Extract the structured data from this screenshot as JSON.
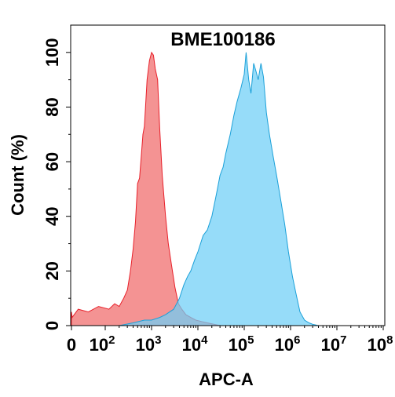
{
  "chart_data": {
    "type": "area",
    "title": "BME100186",
    "xlabel": "APC-A",
    "ylabel": "Count (%)",
    "x_scale": "biexponential",
    "ylim": [
      0,
      110
    ],
    "x_ticks": [
      {
        "value": 0,
        "base": "0",
        "exp": ""
      },
      {
        "value": 100,
        "base": "10",
        "exp": "2"
      },
      {
        "value": 1000,
        "base": "10",
        "exp": "3"
      },
      {
        "value": 10000,
        "base": "10",
        "exp": "4"
      },
      {
        "value": 100000,
        "base": "10",
        "exp": "5"
      },
      {
        "value": 1000000,
        "base": "10",
        "exp": "6"
      },
      {
        "value": 10000000,
        "base": "10",
        "exp": "7"
      },
      {
        "value": 100000000,
        "base": "10",
        "exp": "8"
      }
    ],
    "y_ticks": [
      0,
      20,
      40,
      60,
      80,
      100
    ],
    "grid": false,
    "series": [
      {
        "color": "#f06a6a",
        "stroke": "#e8202a",
        "points": [
          [
            0,
            0
          ],
          [
            0,
            5
          ],
          [
            2,
            3
          ],
          [
            20,
            6
          ],
          [
            50,
            5
          ],
          [
            80,
            7
          ],
          [
            120,
            6
          ],
          [
            160,
            8
          ],
          [
            200,
            7
          ],
          [
            250,
            10
          ],
          [
            300,
            13
          ],
          [
            350,
            20
          ],
          [
            400,
            28
          ],
          [
            450,
            38
          ],
          [
            500,
            52
          ],
          [
            550,
            54
          ],
          [
            600,
            62
          ],
          [
            650,
            70
          ],
          [
            700,
            73
          ],
          [
            800,
            90
          ],
          [
            900,
            97
          ],
          [
            1000,
            100
          ],
          [
            1100,
            99
          ],
          [
            1200,
            94
          ],
          [
            1350,
            90
          ],
          [
            1500,
            72
          ],
          [
            1700,
            55
          ],
          [
            2000,
            40
          ],
          [
            2300,
            30
          ],
          [
            2700,
            22
          ],
          [
            3200,
            14
          ],
          [
            3800,
            8
          ],
          [
            4500,
            6
          ],
          [
            5500,
            4
          ],
          [
            7000,
            3
          ],
          [
            9000,
            2
          ],
          [
            12000,
            1.5
          ],
          [
            16000,
            1
          ],
          [
            22000,
            0.5
          ],
          [
            30000,
            0
          ]
        ]
      },
      {
        "color": "#6ecff6",
        "stroke": "#1ba0d8",
        "points": [
          [
            200,
            0
          ],
          [
            400,
            1
          ],
          [
            700,
            2
          ],
          [
            1000,
            2
          ],
          [
            1500,
            3
          ],
          [
            2000,
            4
          ],
          [
            3000,
            6
          ],
          [
            4000,
            10
          ],
          [
            5000,
            15
          ],
          [
            6000,
            18
          ],
          [
            7000,
            20
          ],
          [
            8500,
            24
          ],
          [
            10000,
            27
          ],
          [
            13000,
            33
          ],
          [
            16000,
            35
          ],
          [
            20000,
            40
          ],
          [
            25000,
            48
          ],
          [
            30000,
            55
          ],
          [
            35000,
            58
          ],
          [
            40000,
            63
          ],
          [
            50000,
            70
          ],
          [
            60000,
            77
          ],
          [
            70000,
            82
          ],
          [
            85000,
            87
          ],
          [
            100000,
            92
          ],
          [
            110000,
            100
          ],
          [
            125000,
            90
          ],
          [
            140000,
            85
          ],
          [
            160000,
            96
          ],
          [
            180000,
            93
          ],
          [
            200000,
            90
          ],
          [
            230000,
            96
          ],
          [
            260000,
            91
          ],
          [
            300000,
            78
          ],
          [
            350000,
            70
          ],
          [
            420000,
            62
          ],
          [
            500000,
            55
          ],
          [
            600000,
            47
          ],
          [
            750000,
            37
          ],
          [
            900000,
            27
          ],
          [
            1100000,
            18
          ],
          [
            1300000,
            12
          ],
          [
            1600000,
            5
          ],
          [
            2000000,
            2
          ],
          [
            2500000,
            1
          ],
          [
            3000000,
            0.5
          ],
          [
            4000000,
            0
          ]
        ]
      }
    ]
  }
}
